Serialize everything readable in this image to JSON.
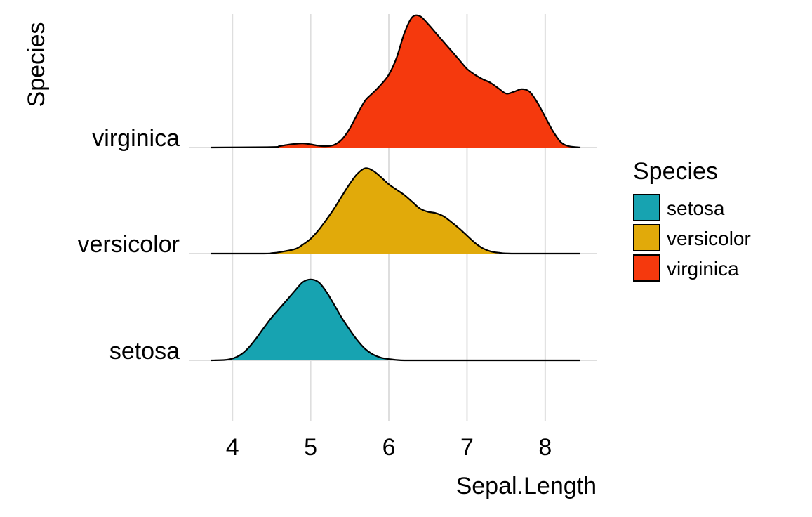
{
  "chart_data": {
    "type": "ridgeline",
    "title": "",
    "xlabel": "Sepal.Length",
    "ylabel": "Species",
    "xlim": [
      3.72,
      8.45
    ],
    "x_ticks": [
      4,
      5,
      6,
      7,
      8
    ],
    "x_tick_labels": [
      "4",
      "5",
      "6",
      "7",
      "8"
    ],
    "categories": [
      "setosa",
      "versicolor",
      "virginica"
    ],
    "grid": true,
    "legend": {
      "title": "Species",
      "position": "right",
      "entries": [
        "setosa",
        "versicolor",
        "virginica"
      ]
    },
    "series": [
      {
        "name": "setosa",
        "color": "#17a3b1",
        "fill_range": [
          4.0,
          6.2
        ],
        "x": [
          3.72,
          3.9,
          4.0,
          4.1,
          4.2,
          4.3,
          4.4,
          4.5,
          4.6,
          4.7,
          4.8,
          4.9,
          5.0,
          5.1,
          5.2,
          5.3,
          5.4,
          5.5,
          5.6,
          5.7,
          5.8,
          5.9,
          6.0,
          6.1,
          6.2,
          6.4,
          7.0,
          8.45
        ],
        "density": [
          0.0,
          0.01,
          0.04,
          0.12,
          0.27,
          0.48,
          0.72,
          0.95,
          1.15,
          1.35,
          1.55,
          1.74,
          1.8,
          1.74,
          1.53,
          1.24,
          0.94,
          0.68,
          0.44,
          0.25,
          0.13,
          0.06,
          0.03,
          0.01,
          0.0,
          0.0,
          0.0,
          0.0
        ]
      },
      {
        "name": "versicolor",
        "color": "#e1aa0a",
        "fill_range": [
          4.5,
          7.4
        ],
        "x": [
          3.72,
          4.4,
          4.5,
          4.6,
          4.8,
          4.9,
          5.0,
          5.1,
          5.2,
          5.3,
          5.4,
          5.5,
          5.6,
          5.7,
          5.8,
          5.9,
          6.0,
          6.1,
          6.2,
          6.3,
          6.4,
          6.5,
          6.6,
          6.7,
          6.8,
          6.9,
          7.0,
          7.1,
          7.2,
          7.3,
          7.4,
          7.6,
          8.45
        ],
        "density": [
          0.0,
          0.0,
          0.01,
          0.03,
          0.1,
          0.2,
          0.33,
          0.52,
          0.75,
          1.0,
          1.28,
          1.55,
          1.78,
          1.9,
          1.84,
          1.7,
          1.54,
          1.42,
          1.3,
          1.15,
          1.0,
          0.93,
          0.9,
          0.83,
          0.7,
          0.56,
          0.4,
          0.24,
          0.12,
          0.05,
          0.02,
          0.0,
          0.0
        ]
      },
      {
        "name": "virginica",
        "color": "#f5390d",
        "fill_range": [
          4.55,
          8.45
        ],
        "x": [
          3.72,
          4.5,
          4.6,
          4.7,
          4.8,
          4.9,
          5.0,
          5.1,
          5.2,
          5.3,
          5.4,
          5.5,
          5.6,
          5.7,
          5.8,
          5.9,
          6.0,
          6.1,
          6.2,
          6.3,
          6.4,
          6.5,
          6.6,
          6.7,
          6.8,
          6.9,
          7.0,
          7.1,
          7.2,
          7.3,
          7.4,
          7.5,
          7.6,
          7.7,
          7.8,
          7.9,
          8.0,
          8.1,
          8.2,
          8.3,
          8.45
        ],
        "density": [
          0.0,
          0.01,
          0.03,
          0.06,
          0.08,
          0.09,
          0.07,
          0.04,
          0.03,
          0.06,
          0.18,
          0.42,
          0.75,
          1.05,
          1.22,
          1.4,
          1.62,
          2.0,
          2.55,
          2.9,
          2.92,
          2.75,
          2.55,
          2.35,
          2.15,
          1.95,
          1.75,
          1.62,
          1.52,
          1.44,
          1.32,
          1.2,
          1.24,
          1.3,
          1.24,
          1.0,
          0.68,
          0.36,
          0.12,
          0.03,
          0.0
        ]
      }
    ]
  }
}
